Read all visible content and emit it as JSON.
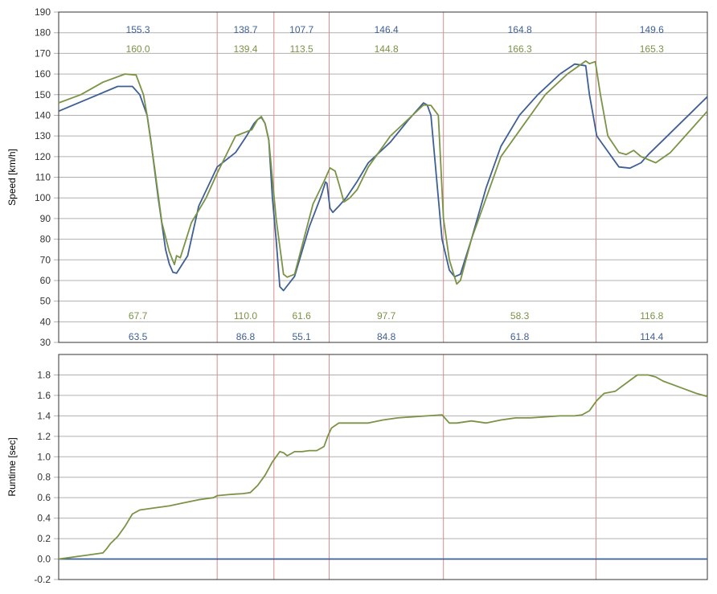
{
  "colors": {
    "background": "#ffffff",
    "grid": "#b0b0b0",
    "frame": "#333333",
    "sector_line": "#d98c8c",
    "series_blue": "#3e5f95",
    "series_green": "#7a9345",
    "text": "#333333"
  },
  "chart_data": [
    {
      "type": "line",
      "ylabel": "Speed [km/h]",
      "xlabel": "",
      "ylim": [
        30,
        190
      ],
      "yticks": [
        30,
        40,
        50,
        60,
        70,
        80,
        90,
        100,
        110,
        120,
        130,
        140,
        150,
        160,
        170,
        180,
        190
      ],
      "xlim": [
        0,
        880
      ],
      "grid": true,
      "sector_boundaries": [
        215,
        292,
        367,
        522,
        729
      ],
      "series": [
        {
          "color": "#3e5f95",
          "x": [
            0,
            40,
            80,
            100,
            110,
            120,
            125,
            135,
            145,
            150,
            155,
            160,
            175,
            190,
            215,
            240,
            255,
            265,
            270,
            275,
            280,
            285,
            290,
            295,
            300,
            305,
            320,
            340,
            355,
            362,
            364,
            368,
            372,
            380,
            390,
            405,
            420,
            450,
            475,
            495,
            500,
            505,
            515,
            520,
            530,
            537,
            545,
            560,
            580,
            600,
            625,
            650,
            680,
            700,
            715,
            720,
            725,
            730,
            740,
            760,
            775,
            790,
            800,
            820,
            840,
            860,
            880
          ],
          "y": [
            142,
            148,
            154,
            154,
            150,
            140,
            128,
            100,
            75,
            68,
            64,
            63.5,
            72,
            96,
            115,
            122,
            130,
            136,
            138,
            139,
            136,
            128,
            100,
            80,
            57,
            55.1,
            62,
            86,
            100,
            107.7,
            107,
            95,
            93,
            96,
            100,
            108,
            117,
            127,
            138,
            146,
            145,
            140,
            100,
            80,
            65,
            61.8,
            63,
            80,
            105,
            125,
            140,
            150,
            160,
            164.8,
            164,
            150,
            140,
            130,
            125,
            115,
            114.4,
            117,
            121,
            128,
            135,
            142,
            149
          ]
        },
        {
          "color": "#7a9345",
          "x": [
            0,
            30,
            60,
            90,
            105,
            115,
            120,
            130,
            140,
            150,
            157,
            160,
            165,
            180,
            200,
            215,
            240,
            262,
            270,
            275,
            280,
            285,
            295,
            305,
            310,
            320,
            345,
            360,
            368,
            375,
            380,
            387,
            395,
            405,
            420,
            450,
            480,
            495,
            505,
            515,
            522,
            530,
            540,
            545,
            560,
            580,
            600,
            630,
            660,
            690,
            715,
            720,
            728,
            735,
            745,
            760,
            770,
            780,
            790,
            810,
            830,
            850,
            880
          ],
          "y": [
            146,
            150,
            156,
            160,
            159.5,
            150,
            140,
            115,
            88,
            74,
            67.7,
            72,
            71,
            88,
            100,
            112,
            130,
            133,
            138,
            139.4,
            136,
            128,
            90,
            63,
            61.6,
            63,
            97,
            108,
            114.5,
            113,
            107,
            98,
            100,
            104,
            115,
            130,
            140,
            145,
            144.8,
            140,
            90,
            70,
            58.3,
            60,
            80,
            100,
            120,
            135,
            150,
            160,
            166.3,
            165,
            166,
            150,
            130,
            122,
            121,
            123,
            120,
            117,
            122,
            130,
            142
          ]
        }
      ],
      "sector_labels": {
        "max_blue": [
          "155.3",
          "138.7",
          "107.7",
          "146.4",
          "164.8",
          "149.6"
        ],
        "max_green": [
          "160.0",
          "139.4",
          "113.5",
          "144.8",
          "166.3",
          "165.3"
        ],
        "min_green": [
          "67.7",
          "110.0",
          "61.6",
          "97.7",
          "58.3",
          "116.8"
        ],
        "min_blue": [
          "63.5",
          "86.8",
          "55.1",
          "84.8",
          "61.8",
          "114.4"
        ]
      }
    },
    {
      "type": "line",
      "ylabel": "Runtime [sec]",
      "xlabel": "",
      "ylim": [
        -0.2,
        2.0
      ],
      "yticks": [
        -0.2,
        0.0,
        0.2,
        0.4,
        0.6,
        0.8,
        1.0,
        1.2,
        1.4,
        1.6,
        1.8
      ],
      "ytick_labels": [
        "-0.2",
        "0.0",
        "0.2",
        "0.4",
        "0.6",
        "0.8",
        "1.0",
        "1.2",
        "1.4",
        "1.6",
        "1.8"
      ],
      "xlim": [
        0,
        880
      ],
      "grid": true,
      "sector_boundaries": [
        215,
        292,
        367,
        522,
        729
      ],
      "series": [
        {
          "color": "#3e5f95",
          "x": [
            0,
            880
          ],
          "y": [
            0.0,
            0.0
          ]
        },
        {
          "color": "#7a9345",
          "x": [
            0,
            20,
            40,
            60,
            65,
            70,
            80,
            90,
            100,
            110,
            130,
            150,
            170,
            190,
            210,
            215,
            230,
            240,
            250,
            260,
            270,
            280,
            290,
            300,
            305,
            310,
            315,
            320,
            330,
            340,
            350,
            360,
            365,
            370,
            380,
            390,
            400,
            420,
            440,
            460,
            480,
            500,
            520,
            530,
            540,
            560,
            580,
            600,
            620,
            640,
            660,
            680,
            700,
            710,
            720,
            730,
            740,
            755,
            770,
            785,
            800,
            810,
            820,
            835,
            850,
            865,
            880
          ],
          "y": [
            0.0,
            0.02,
            0.04,
            0.06,
            0.1,
            0.15,
            0.22,
            0.32,
            0.44,
            0.48,
            0.5,
            0.52,
            0.55,
            0.58,
            0.6,
            0.62,
            0.63,
            0.635,
            0.64,
            0.65,
            0.72,
            0.82,
            0.95,
            1.05,
            1.04,
            1.01,
            1.03,
            1.05,
            1.05,
            1.06,
            1.06,
            1.1,
            1.2,
            1.28,
            1.33,
            1.33,
            1.33,
            1.33,
            1.36,
            1.38,
            1.39,
            1.4,
            1.41,
            1.33,
            1.33,
            1.35,
            1.33,
            1.36,
            1.38,
            1.38,
            1.39,
            1.4,
            1.4,
            1.41,
            1.45,
            1.55,
            1.62,
            1.64,
            1.72,
            1.8,
            1.8,
            1.78,
            1.74,
            1.7,
            1.66,
            1.62,
            1.59
          ]
        }
      ]
    }
  ]
}
